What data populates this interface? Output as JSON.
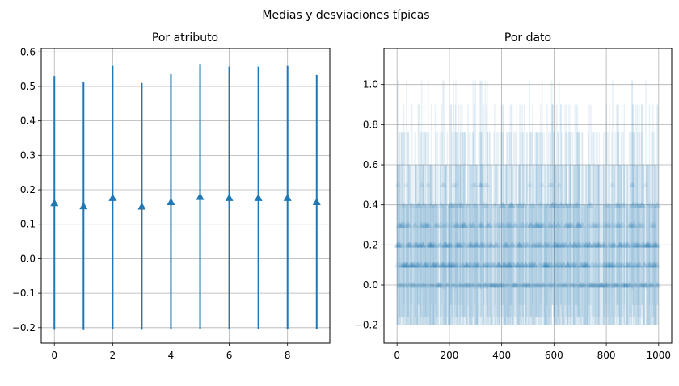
{
  "figure": {
    "suptitle": "Medias y desviaciones típicas"
  },
  "colors": {
    "series": "#1f77b4",
    "grid": "#b0b0b0",
    "axis": "#000000"
  },
  "chart_data": [
    {
      "type": "errorbar",
      "title": "Por atributo",
      "marker": "triangle-up",
      "grid": true,
      "xlim": [
        -0.45,
        9.45
      ],
      "ylim": [
        -0.245,
        0.61
      ],
      "xticks": [
        0,
        2,
        4,
        6,
        8
      ],
      "xtick_labels": [
        "0",
        "2",
        "4",
        "6",
        "8"
      ],
      "yticks": [
        -0.2,
        -0.1,
        0.0,
        0.1,
        0.2,
        0.3,
        0.4,
        0.5,
        0.6
      ],
      "ytick_labels": [
        "−0.2",
        "−0.1",
        "0.0",
        "0.1",
        "0.2",
        "0.3",
        "0.4",
        "0.5",
        "0.6"
      ],
      "x": [
        0,
        1,
        2,
        3,
        4,
        5,
        6,
        7,
        8,
        9
      ],
      "mean": [
        0.162,
        0.153,
        0.177,
        0.152,
        0.165,
        0.18,
        0.177,
        0.177,
        0.177,
        0.165
      ],
      "std": [
        0.368,
        0.36,
        0.382,
        0.358,
        0.37,
        0.385,
        0.38,
        0.38,
        0.382,
        0.368
      ]
    },
    {
      "type": "errorbar",
      "title": "Por dato",
      "marker": "triangle-up",
      "alpha": 0.1,
      "grid": true,
      "n_points": 1000,
      "xlim": [
        -50,
        1050
      ],
      "ylim": [
        -0.29,
        1.18
      ],
      "xticks": [
        0,
        200,
        400,
        600,
        800,
        1000
      ],
      "xtick_labels": [
        "0",
        "200",
        "400",
        "600",
        "800",
        "1000"
      ],
      "yticks": [
        -0.2,
        0.0,
        0.2,
        0.4,
        0.6,
        0.8,
        1.0
      ],
      "ytick_labels": [
        "−0.2",
        "0.0",
        "0.2",
        "0.4",
        "0.6",
        "0.8",
        "1.0"
      ],
      "mean_levels": [
        0.0,
        0.1,
        0.2,
        0.3,
        0.4,
        0.5
      ],
      "level_weights": [
        0.22,
        0.3,
        0.24,
        0.14,
        0.07,
        0.03
      ],
      "std_by_level": [
        0.0,
        0.3,
        0.4,
        0.46,
        0.5,
        0.52
      ]
    }
  ]
}
